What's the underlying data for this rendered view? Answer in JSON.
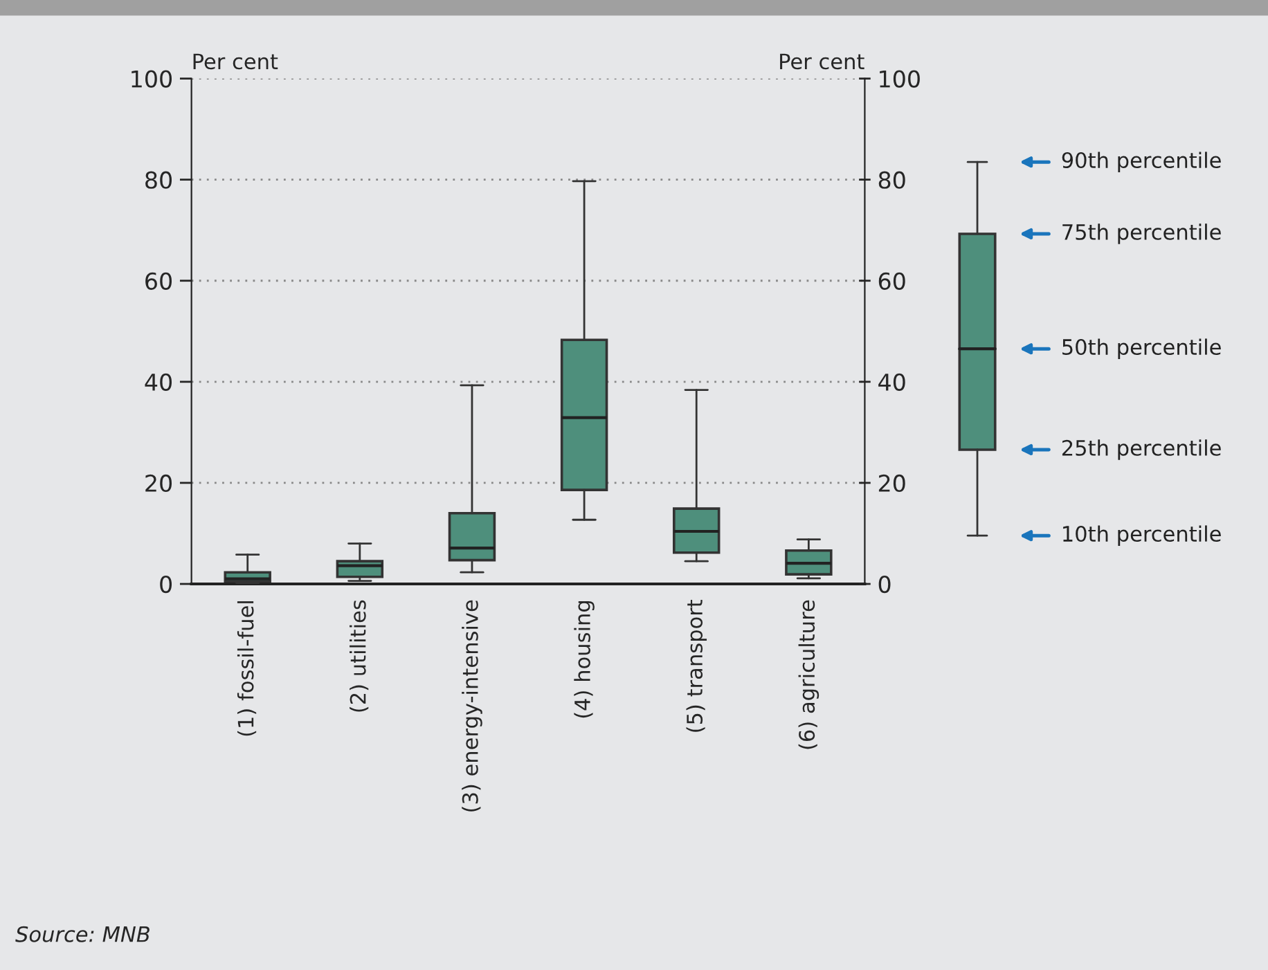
{
  "chart_data": {
    "type": "box",
    "ylabel": "Per cent",
    "y2label": "Per cent",
    "categories": [
      "(1) fossil-fuel",
      "(2) utilities",
      "(3) energy-intensive",
      "(4) housing",
      "(5) transport",
      "(6) agriculture"
    ],
    "boxes": [
      {
        "low": 0.2,
        "q1": 0.5,
        "median": 1.0,
        "q3": 2.3,
        "high": 5.8
      },
      {
        "low": 0.6,
        "q1": 1.4,
        "median": 3.6,
        "q3": 4.5,
        "high": 8.0
      },
      {
        "low": 2.3,
        "q1": 4.7,
        "median": 7.1,
        "q3": 14.0,
        "high": 39.3
      },
      {
        "low": 12.7,
        "q1": 18.6,
        "median": 32.9,
        "q3": 48.3,
        "high": 79.7
      },
      {
        "low": 4.5,
        "q1": 6.2,
        "median": 10.4,
        "q3": 14.9,
        "high": 38.4
      },
      {
        "low": 1.1,
        "q1": 1.9,
        "median": 4.1,
        "q3": 6.6,
        "high": 8.8
      }
    ],
    "color": "#4e8f7c",
    "ylim": [
      0,
      100
    ],
    "yticks": [
      0,
      20,
      40,
      60,
      80,
      100
    ],
    "y2lim": [
      0,
      100
    ],
    "y2ticks": [
      0,
      20,
      40,
      60,
      80,
      100
    ],
    "grid": "y",
    "annotations": [
      "90th percentile",
      "75th percentile",
      "50th percentile",
      "25th percentile",
      "10th percentile",
      "Source: MNB"
    ]
  }
}
